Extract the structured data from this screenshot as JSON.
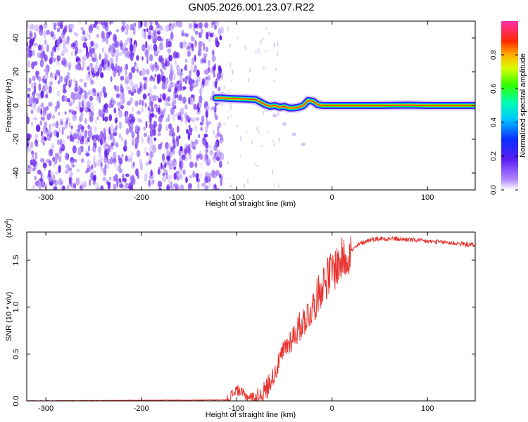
{
  "title": "GN05.2026.001.23.07.R22",
  "colors": {
    "top_noise": "#7c3aed",
    "top_noise_light": "#c4b5fd",
    "snr_line": "#e8342f",
    "frame": "#000000"
  },
  "colorbar": {
    "label": "Normalized spectral amplitude",
    "ticks": [
      "0.0",
      "0.2",
      "0.4",
      "0.6",
      "0.8"
    ],
    "tick_values": [
      0.0,
      0.2,
      0.4,
      0.6,
      0.8
    ],
    "range": [
      0,
      1
    ],
    "colormap": "rainbow (violet-blue-cyan-green-yellow-red-magenta)"
  },
  "chart_data": [
    {
      "type": "heatmap",
      "xlabel": "Height of straight line (km)",
      "ylabel": "Frequency (Hz)",
      "xlim": [
        -320,
        150
      ],
      "ylim": [
        -50,
        50
      ],
      "xticks": [
        -300,
        -200,
        -100,
        0,
        100
      ],
      "xtick_labels": [
        "-300",
        "-200",
        "-100",
        "0",
        "100"
      ],
      "yticks": [
        -40,
        -20,
        0,
        20,
        40
      ],
      "ytick_labels": [
        "-40",
        "-20",
        "0",
        "20",
        "40"
      ],
      "noise_region_x": [
        -320,
        -115
      ],
      "ridge": {
        "x": [
          -122,
          -115,
          -110,
          -100,
          -90,
          -80,
          -75,
          -70,
          -65,
          -60,
          -55,
          -50,
          -45,
          -40,
          -35,
          -30,
          -25,
          -20,
          -15,
          -10,
          0,
          20,
          50,
          80,
          100,
          120,
          150
        ],
        "y": [
          4.5,
          4.5,
          4.2,
          4.0,
          3.8,
          3.5,
          2.0,
          0.5,
          -0.5,
          0.0,
          -1.0,
          -0.5,
          -1.5,
          -1.5,
          -1.0,
          0.0,
          3.0,
          2.5,
          0.5,
          0.0,
          0.0,
          0.0,
          0.0,
          0.2,
          0.0,
          0.0,
          0.0
        ]
      },
      "faint_branch": {
        "x": [
          -70,
          -60,
          -50,
          -40,
          -30
        ],
        "y": [
          -1,
          -6,
          -11,
          -17,
          -23
        ]
      }
    },
    {
      "type": "line",
      "xlabel": "Height of straight line (km)",
      "ylabel": "SNR (10 * v/v)",
      "y_multiplier_label": "(x10",
      "y_multiplier_exp": "4",
      "xlim": [
        -320,
        150
      ],
      "ylim": [
        0,
        1.8
      ],
      "xticks": [
        -300,
        -200,
        -100,
        0,
        100
      ],
      "xtick_labels": [
        "-300",
        "-200",
        "-100",
        "0",
        "100"
      ],
      "yticks": [
        0.0,
        0.5,
        1.0,
        1.5
      ],
      "ytick_labels": [
        "0.0",
        "0.5",
        "1.0",
        "1.5"
      ],
      "series": [
        {
          "x": [
            -320,
            -110,
            -100,
            -90,
            -80,
            -70,
            -60,
            -50,
            -40,
            -30,
            -20,
            -10,
            0,
            10,
            20,
            30,
            40,
            50,
            60,
            80,
            100,
            120,
            150
          ],
          "y": [
            0.0,
            0.01,
            0.12,
            0.05,
            0.03,
            0.1,
            0.3,
            0.55,
            0.7,
            0.85,
            1.0,
            1.25,
            1.38,
            1.5,
            1.6,
            1.68,
            1.72,
            1.73,
            1.73,
            1.72,
            1.7,
            1.69,
            1.66
          ]
        }
      ]
    }
  ]
}
